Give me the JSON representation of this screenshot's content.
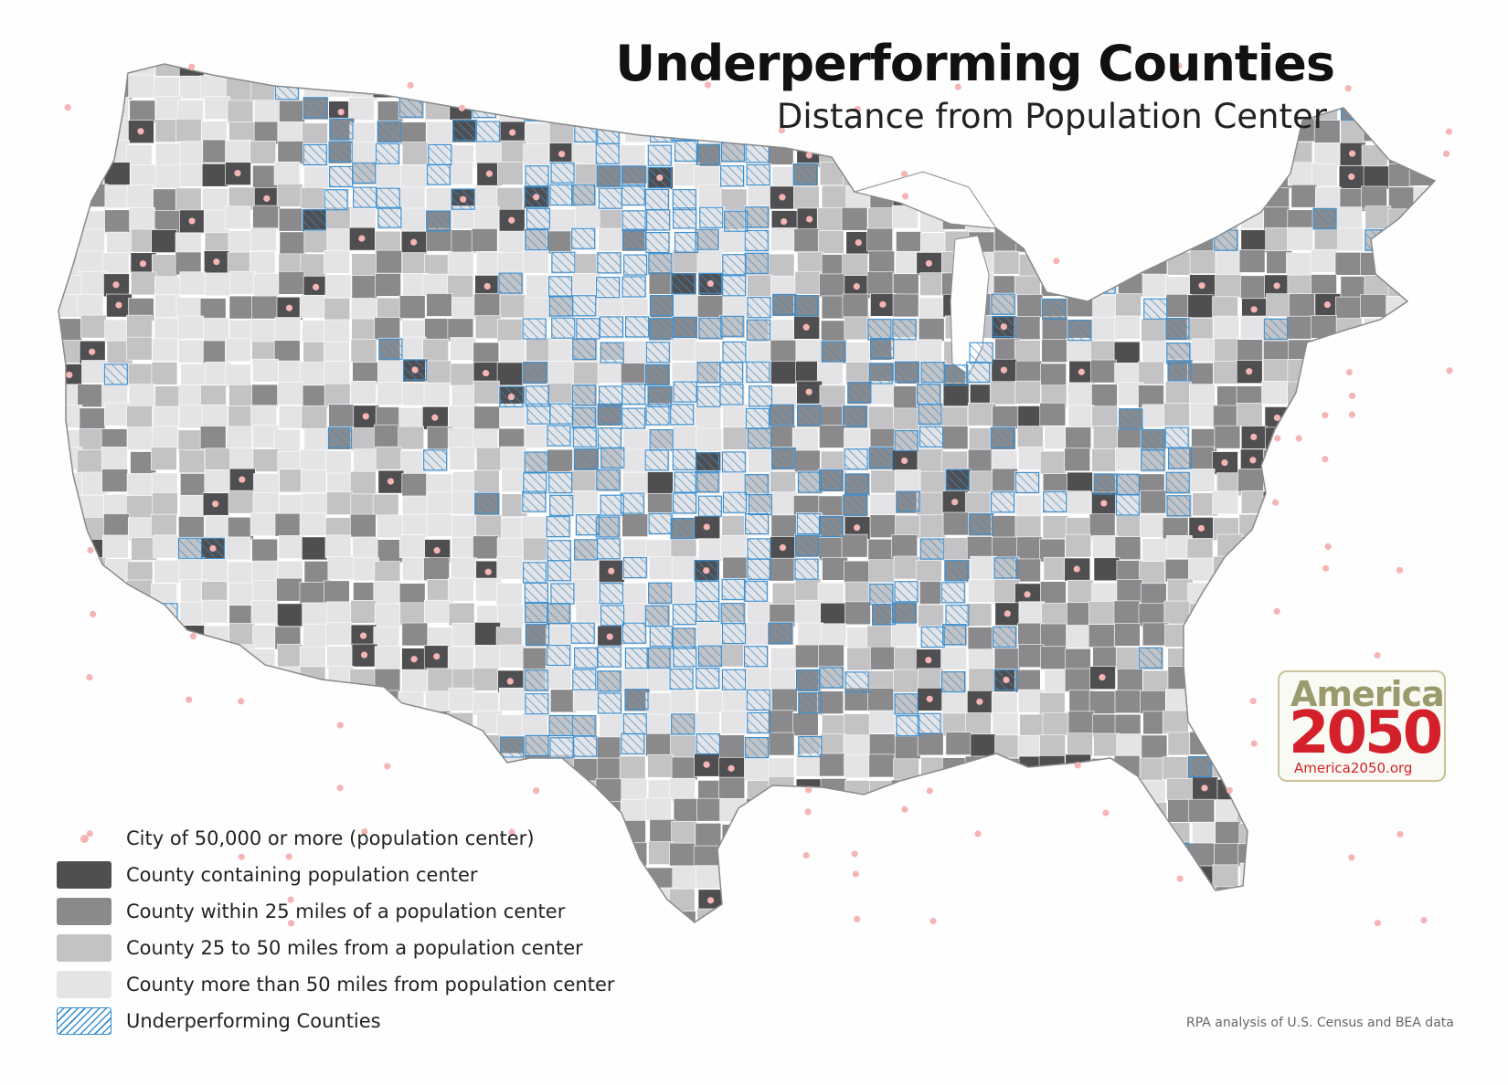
{
  "title": "Underperforming Counties",
  "subtitle": "Distance from Population Center",
  "legend": {
    "items": [
      {
        "label": "City of 50,000 or more (population center)"
      },
      {
        "label": "County containing population center"
      },
      {
        "label": "County within 25 miles of a population center"
      },
      {
        "label": "County 25 to 50 miles from a population center"
      },
      {
        "label": "County more than 50 miles from population center"
      },
      {
        "label": "Underperforming Counties"
      }
    ]
  },
  "source": "RPA analysis of U.S. Census and BEA data",
  "logo": {
    "top": "America",
    "middle": "2050",
    "url": "America2050.org"
  },
  "colors": {
    "county_containing": "#4f4f51",
    "county_within_25": "#8a8a8d",
    "county_25_50": "#c3c3c5",
    "county_over_50": "#e4e4e6",
    "underperforming_hatch": "#3a8fd0",
    "population_center": "#f5b5b5",
    "logo_red": "#d4202a",
    "logo_olive": "#9a9a6c"
  }
}
